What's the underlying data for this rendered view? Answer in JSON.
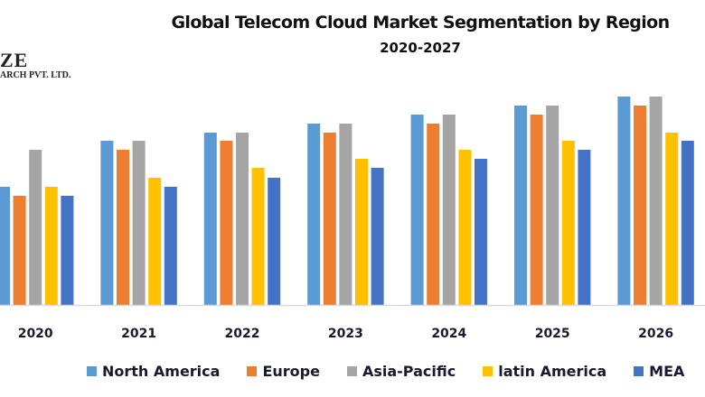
{
  "logo": {
    "line1": "ZE",
    "line2": "ARCH PVT. LTD."
  },
  "chart_data": {
    "type": "bar",
    "title": "Global Telecom Cloud Market Segmentation by Region",
    "subtitle": "2020-2027",
    "xlabel": "",
    "ylabel": "",
    "y_axis_visible": false,
    "grid": false,
    "legend_position": "bottom",
    "value_units": "relative index (no y-axis shown; estimated from bar heights)",
    "ylim": [
      0,
      24
    ],
    "categories": [
      "2020",
      "2021",
      "2022",
      "2023",
      "2024",
      "2025",
      "2026"
    ],
    "series": [
      {
        "name": "North America",
        "color": "#5B9BD5",
        "values": [
          13.1,
          18.2,
          19.1,
          20.1,
          21.1,
          22.1,
          23.1
        ]
      },
      {
        "name": "Europe",
        "color": "#ED7D31",
        "values": [
          12.1,
          17.2,
          18.2,
          19.1,
          20.1,
          21.1,
          22.1
        ]
      },
      {
        "name": "Asia-Pacific",
        "color": "#A5A5A5",
        "values": [
          17.2,
          18.2,
          19.1,
          20.1,
          21.1,
          22.1,
          23.1
        ]
      },
      {
        "name": "latin America",
        "color": "#FFC000",
        "values": [
          13.1,
          14.1,
          15.2,
          16.2,
          17.2,
          18.2,
          19.1
        ]
      },
      {
        "name": "MEA",
        "color": "#4472C4",
        "values": [
          12.1,
          13.1,
          14.1,
          15.2,
          16.2,
          17.2,
          18.2
        ]
      }
    ]
  }
}
